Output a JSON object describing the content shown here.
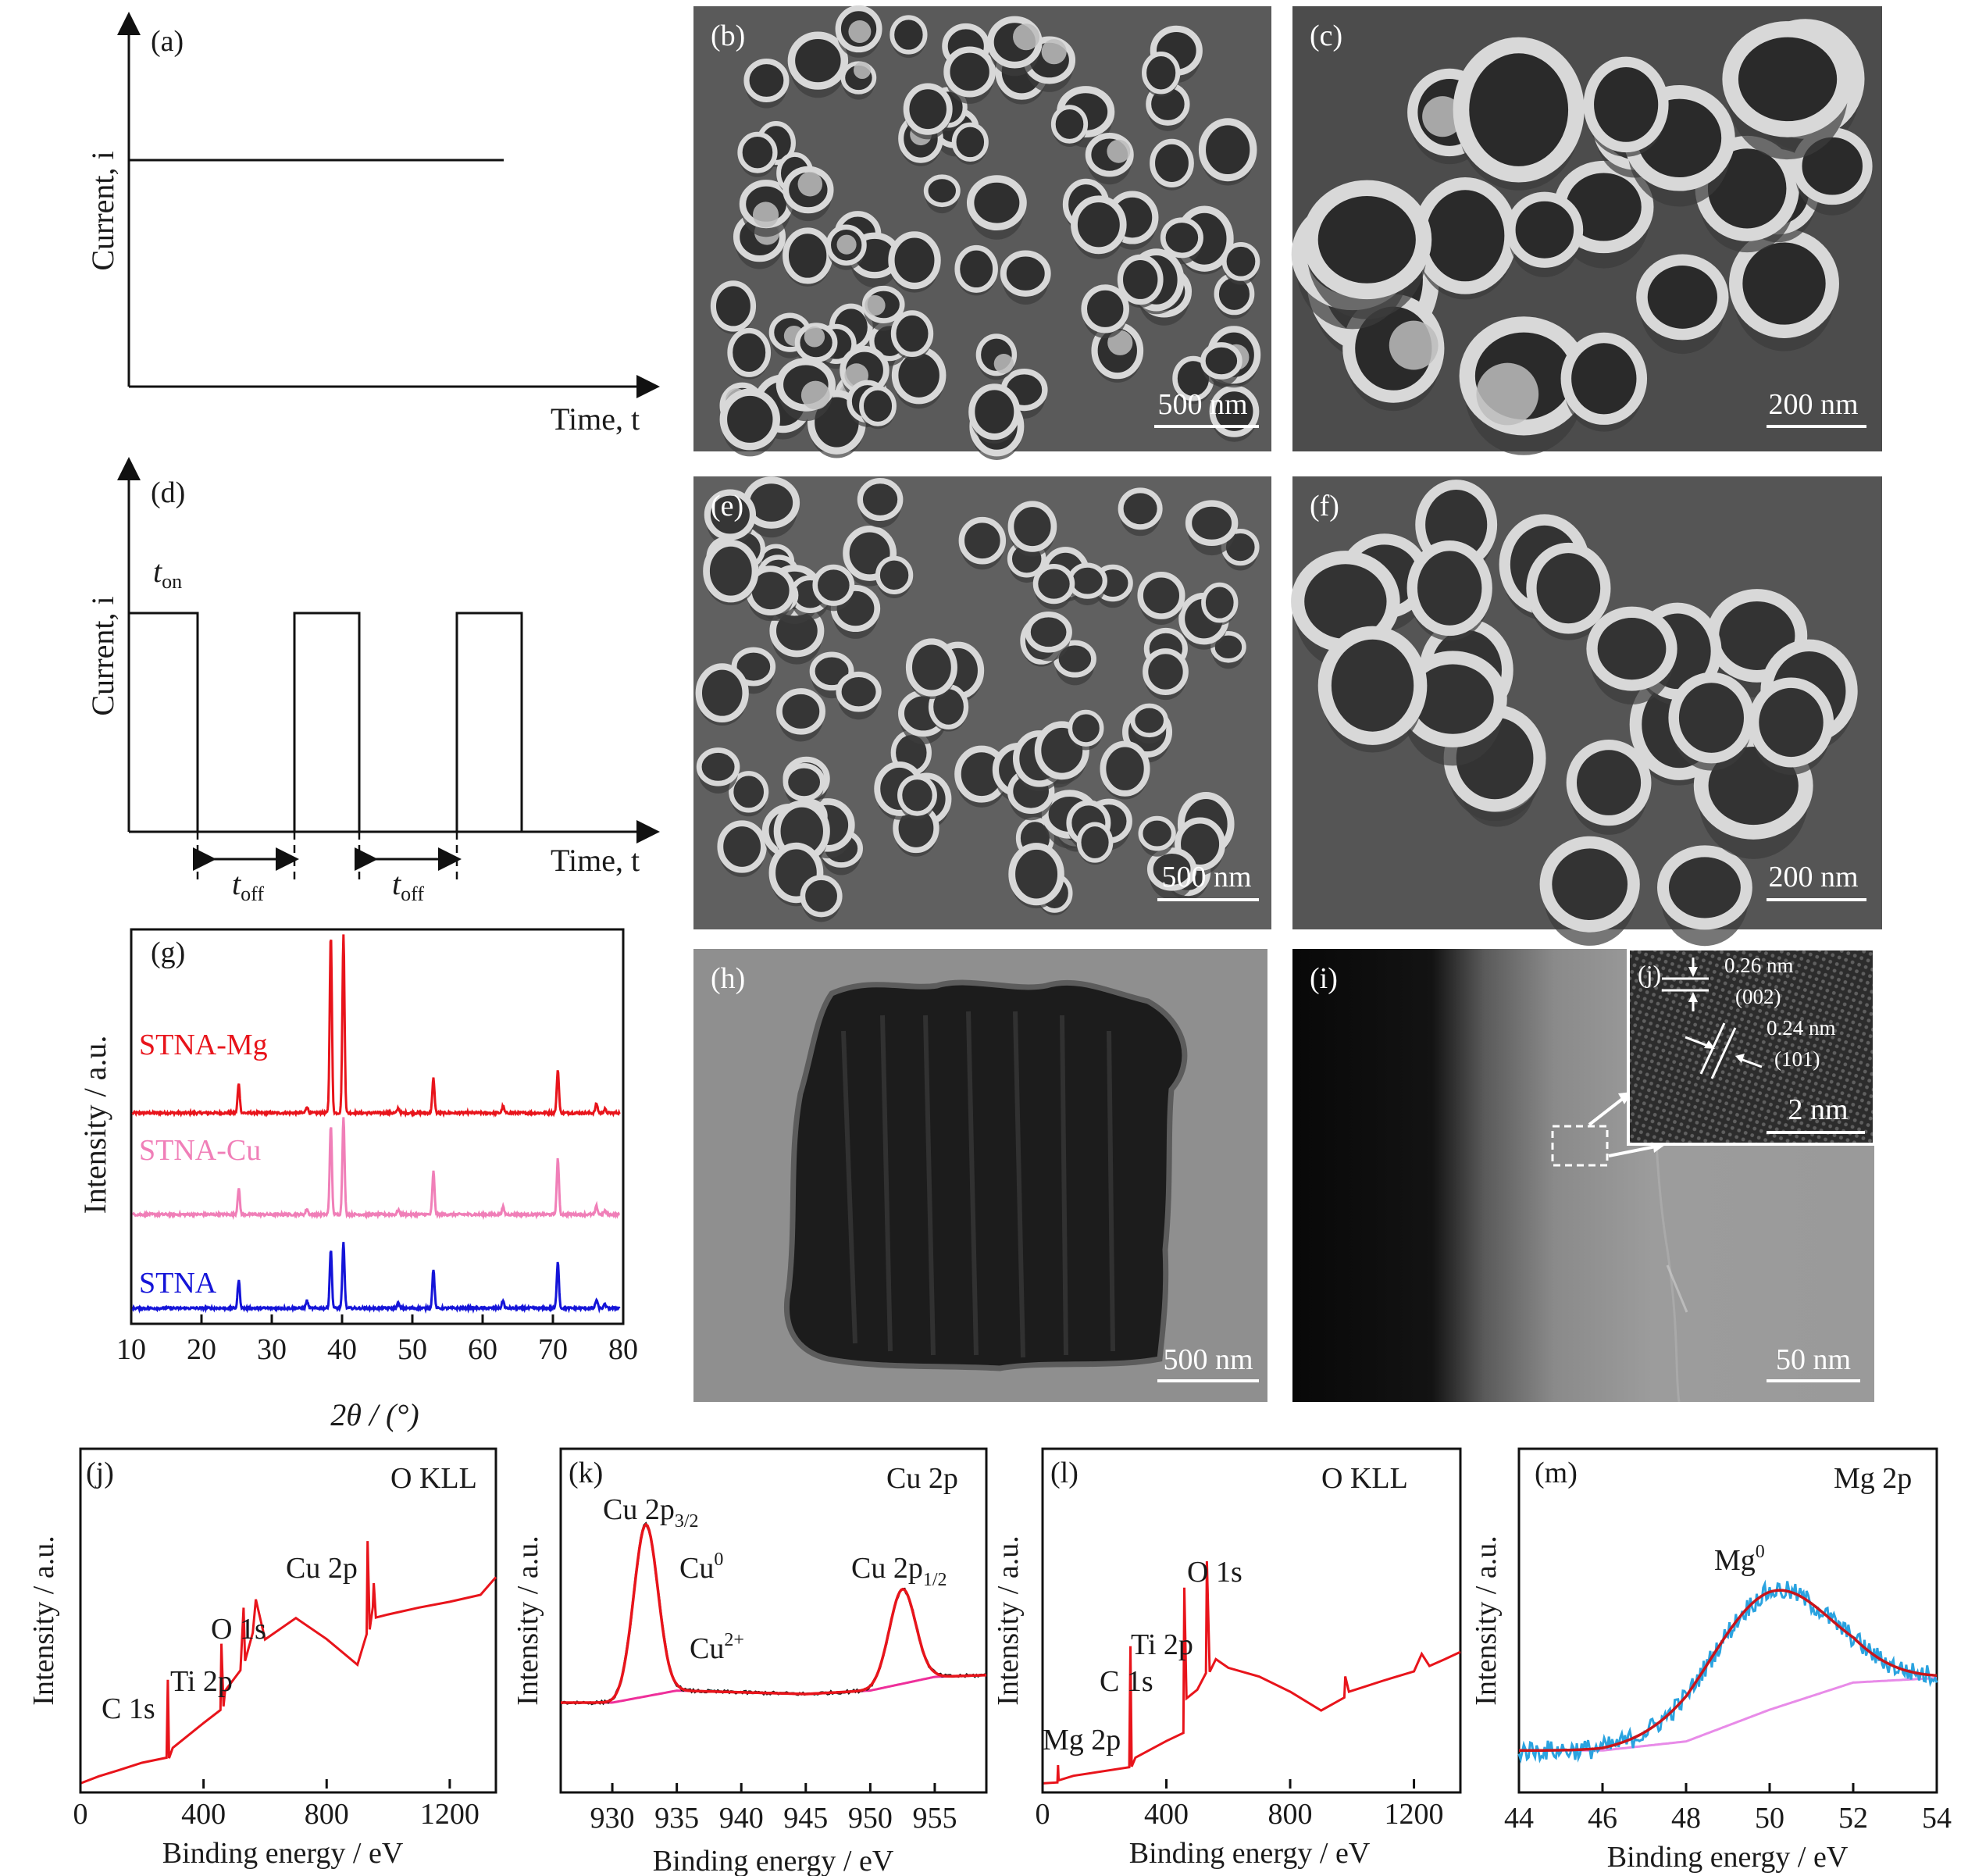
{
  "panels": {
    "a": {
      "label": "(a)",
      "xlabel": "Time, t",
      "ylabel": "Current, i"
    },
    "b": {
      "label": "(b)",
      "scalebar": "500 nm"
    },
    "c": {
      "label": "(c)",
      "scalebar": "200 nm"
    },
    "d": {
      "label": "(d)",
      "xlabel": "Time, t",
      "ylabel": "Current, i",
      "t_on": "t",
      "t_on_sub": "on",
      "t_off": "t",
      "t_off_sub": "off"
    },
    "e": {
      "label": "(e)",
      "scalebar": "500 nm"
    },
    "f": {
      "label": "(f)",
      "scalebar": "200 nm"
    },
    "h": {
      "label": "(h)",
      "scalebar": "500 nm"
    },
    "i": {
      "label": "(i)",
      "scalebar": "50 nm",
      "inset": {
        "label": "(j)",
        "scalebar": "2 nm",
        "d1": "0.26 nm",
        "p1": "(002)",
        "d2": "0.24 nm",
        "p2": "(101)"
      }
    }
  },
  "colors": {
    "red": "#e8141b",
    "pink": "#f07fb8",
    "blue": "#1414d8",
    "cyan": "#2aa3e0",
    "magenta": "#ee2f9a",
    "violet": "#e88be8",
    "dark_red": "#c8141b"
  },
  "chart_data": [
    {
      "panel": "(g)",
      "type": "line",
      "xlabel": "2θ / (°)",
      "ylabel": "Intensity / a.u.",
      "xlim": [
        10,
        80
      ],
      "xticks": [
        "10",
        "20",
        "30",
        "40",
        "50",
        "60",
        "70",
        "80"
      ],
      "peaks_2theta": [
        25.3,
        35.0,
        38.4,
        40.2,
        48.0,
        53.0,
        62.9,
        70.7,
        76.2,
        77.4
      ],
      "series": [
        {
          "name": "STNA-Mg",
          "color": "#e8141b",
          "peak_heights": [
            0.31,
            0.07,
            1.9,
            1.9,
            0.05,
            0.37,
            0.07,
            0.46,
            0.1,
            0.04
          ]
        },
        {
          "name": "STNA-Cu",
          "color": "#f07fb8",
          "peak_heights": [
            0.28,
            0.06,
            0.95,
            1.05,
            0.05,
            0.46,
            0.08,
            0.6,
            0.09,
            0.04
          ]
        },
        {
          "name": "STNA",
          "color": "#1414d8",
          "peak_heights": [
            0.3,
            0.08,
            0.62,
            0.7,
            0.05,
            0.42,
            0.08,
            0.5,
            0.09,
            0.04
          ]
        }
      ]
    },
    {
      "panel": "(j)",
      "type": "line",
      "title": "O KLL",
      "xlabel": "Binding energy / eV",
      "ylabel": "Intensity / a.u.",
      "xlim": [
        0,
        1350
      ],
      "xticks": [
        "0",
        "400",
        "800",
        "1200"
      ],
      "annotations": [
        "C 1s",
        "Ti 2p",
        "O 1s",
        "Cu 2p"
      ],
      "series": [
        {
          "color": "#e8141b",
          "x": [
            0,
            60,
            120,
            200,
            280,
            284,
            288,
            300,
            400,
            455,
            458,
            465,
            470,
            520,
            530,
            535,
            560,
            570,
            600,
            700,
            800,
            900,
            930,
            933,
            940,
            950,
            953,
            960,
            1000,
            1100,
            1200,
            1300,
            1350
          ],
          "y": [
            0.02,
            0.05,
            0.07,
            0.1,
            0.12,
            0.42,
            0.12,
            0.16,
            0.25,
            0.3,
            0.56,
            0.32,
            0.38,
            0.46,
            0.7,
            0.5,
            0.6,
            0.73,
            0.58,
            0.66,
            0.58,
            0.48,
            0.6,
            0.96,
            0.62,
            0.7,
            0.8,
            0.66,
            0.68,
            0.7,
            0.72,
            0.75,
            0.82
          ]
        }
      ]
    },
    {
      "panel": "(k)",
      "type": "line",
      "title": "Cu 2p",
      "xlabel": "Binding energy / eV",
      "ylabel": "Intensity / a.u.",
      "xlim": [
        926,
        959
      ],
      "xticks": [
        "930",
        "935",
        "940",
        "945",
        "950",
        "955"
      ],
      "annotations": [
        "Cu 2p3/2",
        "Cu0",
        "Cu2+",
        "Cu 2p1/2"
      ],
      "peaks": [
        {
          "name": "Cu 2p3/2",
          "center": 932.6,
          "height": 1.0,
          "fwhm": 2.2
        },
        {
          "name": "Cu 2p1/2",
          "center": 952.5,
          "height": 0.55,
          "fwhm": 2.4
        }
      ],
      "background": {
        "x": [
          926,
          930,
          935,
          940,
          945,
          950,
          955,
          959
        ],
        "y": [
          0.0,
          0.0,
          0.07,
          0.06,
          0.05,
          0.07,
          0.15,
          0.16
        ]
      }
    },
    {
      "panel": "(l)",
      "type": "line",
      "title": "O KLL",
      "xlabel": "Binding energy / eV",
      "ylabel": "Intensity / a.u.",
      "xlim": [
        0,
        1350
      ],
      "xticks": [
        "0",
        "400",
        "800",
        "1200"
      ],
      "annotations": [
        "Mg 2p",
        "C 1s",
        "Ti 2p",
        "O 1s"
      ],
      "series": [
        {
          "color": "#e8141b",
          "x": [
            0,
            48,
            50,
            52,
            100,
            280,
            284,
            288,
            300,
            400,
            455,
            458,
            465,
            500,
            528,
            531,
            540,
            560,
            600,
            700,
            800,
            900,
            975,
            978,
            990,
            1100,
            1200,
            1225,
            1250,
            1300,
            1350
          ],
          "y": [
            0.02,
            0.02,
            0.09,
            0.03,
            0.05,
            0.08,
            0.55,
            0.09,
            0.12,
            0.18,
            0.22,
            0.78,
            0.35,
            0.38,
            0.45,
            0.88,
            0.45,
            0.5,
            0.47,
            0.43,
            0.38,
            0.3,
            0.35,
            0.43,
            0.38,
            0.42,
            0.45,
            0.52,
            0.48,
            0.5,
            0.53
          ]
        }
      ]
    },
    {
      "panel": "(m)",
      "type": "line",
      "title": "Mg 2p",
      "xlabel": "Binding energy / eV",
      "ylabel": "Intensity / a.u.",
      "xlim": [
        44,
        54
      ],
      "xticks": [
        "44",
        "46",
        "48",
        "50",
        "52",
        "54"
      ],
      "annotations": [
        "Mg0"
      ],
      "peaks": [
        {
          "name": "Mg0",
          "center": 50.0,
          "height": 0.52,
          "fwhm": 3.4
        }
      ],
      "background": {
        "x": [
          44,
          46,
          48,
          50,
          52,
          54
        ],
        "y": [
          0.03,
          0.03,
          0.07,
          0.21,
          0.33,
          0.35
        ]
      }
    }
  ]
}
